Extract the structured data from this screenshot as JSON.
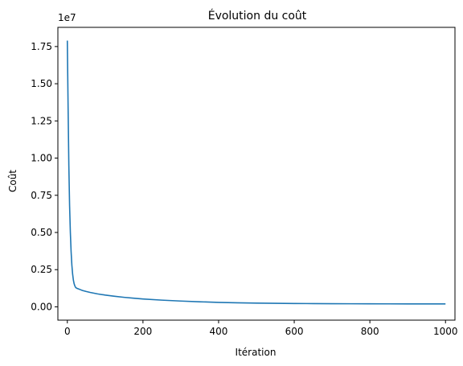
{
  "chart_data": {
    "type": "line",
    "title": "Évolution du coût",
    "xlabel": "Itération",
    "ylabel": "Coût",
    "y_offset_label": "1e7",
    "xlim": [
      -25,
      1025
    ],
    "ylim": [
      -0.0895,
      1.879
    ],
    "xticks": [
      0,
      200,
      400,
      600,
      800,
      1000
    ],
    "xtick_labels": [
      "0",
      "200",
      "400",
      "600",
      "800",
      "1000"
    ],
    "yticks": [
      0.0,
      0.25,
      0.5,
      0.75,
      1.0,
      1.25,
      1.5,
      1.75
    ],
    "ytick_labels": [
      "0.00",
      "0.25",
      "0.50",
      "0.75",
      "1.00",
      "1.25",
      "1.50",
      "1.75"
    ],
    "grid": false,
    "legend": "none",
    "series": [
      {
        "color": "#1f77b4",
        "x": [
          0,
          2,
          4,
          6,
          8,
          10,
          12,
          14,
          16,
          18,
          20,
          22,
          25,
          30,
          35,
          40,
          50,
          60,
          80,
          100,
          125,
          150,
          175,
          200,
          250,
          300,
          350,
          400,
          450,
          500,
          550,
          600,
          650,
          700,
          750,
          800,
          850,
          900,
          950,
          1000
        ],
        "y": [
          1.79,
          1.35,
          0.95,
          0.68,
          0.5,
          0.37,
          0.28,
          0.22,
          0.18,
          0.155,
          0.14,
          0.13,
          0.125,
          0.12,
          0.115,
          0.11,
          0.103,
          0.097,
          0.087,
          0.079,
          0.071,
          0.064,
          0.058,
          0.053,
          0.045,
          0.039,
          0.034,
          0.03,
          0.027,
          0.025,
          0.0235,
          0.0225,
          0.0218,
          0.0212,
          0.0207,
          0.0203,
          0.02,
          0.0198,
          0.0196,
          0.0195
        ]
      }
    ]
  }
}
